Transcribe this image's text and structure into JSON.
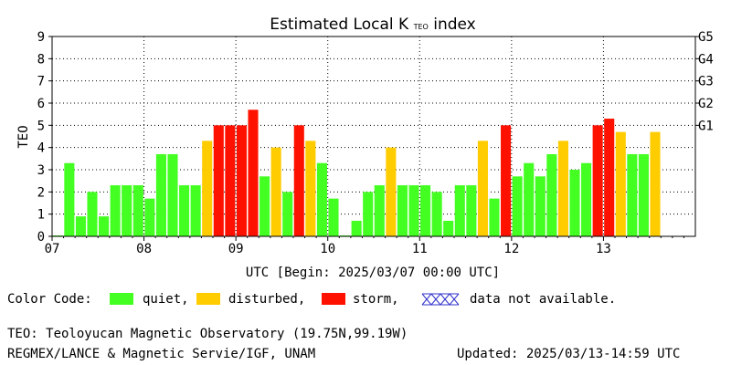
{
  "chart_data": {
    "type": "bar",
    "title": "Estimated Local K",
    "title_subscript": "TEO",
    "title_suffix": "index",
    "ylabel": "TEO",
    "xlabel": "UTC [Begin: 2025/03/07 00:00 UTC]",
    "ylim": [
      0,
      9
    ],
    "y_ticks": [
      "0",
      "1",
      "2",
      "3",
      "4",
      "5",
      "6",
      "7",
      "8",
      "9"
    ],
    "g_scale": [
      {
        "label": "G1",
        "level": 5
      },
      {
        "label": "G2",
        "level": 6
      },
      {
        "label": "G3",
        "level": 7
      },
      {
        "label": "G4",
        "level": 8
      },
      {
        "label": "G5",
        "level": 9
      }
    ],
    "x_ticks": [
      "07",
      "08",
      "09",
      "10",
      "11",
      "12",
      "13"
    ],
    "grid": true,
    "bars_per_day": 8,
    "bars": [
      {
        "value": 0.0,
        "status": "quiet"
      },
      {
        "value": 3.3,
        "status": "quiet"
      },
      {
        "value": 0.9,
        "status": "quiet"
      },
      {
        "value": 2.0,
        "status": "quiet"
      },
      {
        "value": 0.9,
        "status": "quiet"
      },
      {
        "value": 2.3,
        "status": "quiet"
      },
      {
        "value": 2.3,
        "status": "quiet"
      },
      {
        "value": 2.3,
        "status": "quiet"
      },
      {
        "value": 1.7,
        "status": "quiet"
      },
      {
        "value": 3.7,
        "status": "quiet"
      },
      {
        "value": 3.7,
        "status": "quiet"
      },
      {
        "value": 2.3,
        "status": "quiet"
      },
      {
        "value": 2.3,
        "status": "quiet"
      },
      {
        "value": 4.3,
        "status": "disturbed"
      },
      {
        "value": 5.0,
        "status": "storm"
      },
      {
        "value": 5.0,
        "status": "storm"
      },
      {
        "value": 5.0,
        "status": "storm"
      },
      {
        "value": 5.7,
        "status": "storm"
      },
      {
        "value": 2.7,
        "status": "quiet"
      },
      {
        "value": 4.0,
        "status": "disturbed"
      },
      {
        "value": 2.0,
        "status": "quiet"
      },
      {
        "value": 5.0,
        "status": "storm"
      },
      {
        "value": 4.3,
        "status": "disturbed"
      },
      {
        "value": 3.3,
        "status": "quiet"
      },
      {
        "value": 1.7,
        "status": "quiet"
      },
      {
        "value": 0.0,
        "status": "quiet"
      },
      {
        "value": 0.7,
        "status": "quiet"
      },
      {
        "value": 2.0,
        "status": "quiet"
      },
      {
        "value": 2.3,
        "status": "quiet"
      },
      {
        "value": 4.0,
        "status": "disturbed"
      },
      {
        "value": 2.3,
        "status": "quiet"
      },
      {
        "value": 2.3,
        "status": "quiet"
      },
      {
        "value": 2.3,
        "status": "quiet"
      },
      {
        "value": 2.0,
        "status": "quiet"
      },
      {
        "value": 0.7,
        "status": "quiet"
      },
      {
        "value": 2.3,
        "status": "quiet"
      },
      {
        "value": 2.3,
        "status": "quiet"
      },
      {
        "value": 4.3,
        "status": "disturbed"
      },
      {
        "value": 1.7,
        "status": "quiet"
      },
      {
        "value": 5.0,
        "status": "storm"
      },
      {
        "value": 2.7,
        "status": "quiet"
      },
      {
        "value": 3.3,
        "status": "quiet"
      },
      {
        "value": 2.7,
        "status": "quiet"
      },
      {
        "value": 3.7,
        "status": "quiet"
      },
      {
        "value": 4.3,
        "status": "disturbed"
      },
      {
        "value": 3.0,
        "status": "quiet"
      },
      {
        "value": 3.3,
        "status": "quiet"
      },
      {
        "value": 5.0,
        "status": "storm"
      },
      {
        "value": 5.3,
        "status": "storm"
      },
      {
        "value": 4.7,
        "status": "disturbed"
      },
      {
        "value": 3.7,
        "status": "quiet"
      },
      {
        "value": 3.7,
        "status": "quiet"
      },
      {
        "value": 4.7,
        "status": "disturbed"
      }
    ],
    "total_slots": 56
  },
  "colors": {
    "quiet": "#44ff22",
    "disturbed": "#ffcc00",
    "storm": "#ff1100",
    "na": "#3333cc"
  },
  "legend": {
    "prefix": "Color Code:",
    "quiet": "quiet,",
    "disturbed": "disturbed,",
    "storm": "storm,",
    "na": "data not available."
  },
  "footer": {
    "station": "TEO: Teoloyucan Magnetic Observatory (19.75N,99.19W)",
    "credits": "REGMEX/LANCE & Magnetic Servie/IGF, UNAM",
    "updated": "Updated: 2025/03/13-14:59 UTC"
  }
}
